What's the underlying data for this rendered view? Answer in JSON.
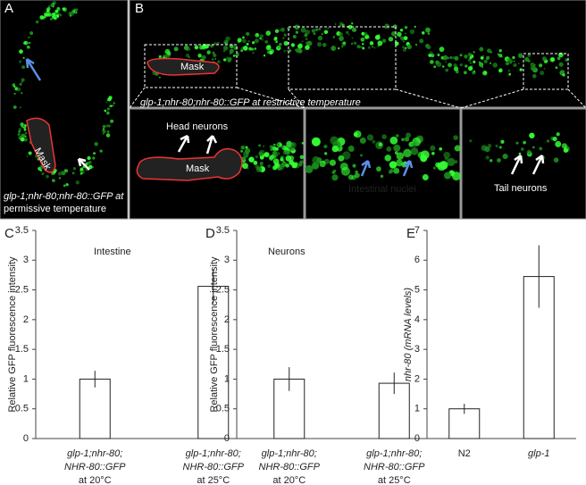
{
  "images": {
    "a": {
      "label": "A",
      "mask": "Mask",
      "caption": [
        "glp-1;nhr-80;nhr-80::GFP at",
        "permissive temperature"
      ]
    },
    "b": {
      "label": "B",
      "mask": "Mask",
      "caption": "glp-1;nhr-80;nhr-80::GFP at restrictive temperature",
      "head_mask": "Mask",
      "head": "Head neurons",
      "intestine": "Intestinal nuclei",
      "tail": "Tail neurons"
    }
  },
  "chart_data": [
    {
      "type": "bar",
      "label": "C",
      "title": "Intestine",
      "y_label": "Relative GFP fluorescence intensity",
      "categories": [
        [
          "glp-1;nhr-80;",
          "NHR-80::GFP",
          "at 20°C"
        ],
        [
          "glp-1;nhr-80;",
          "NHR-80::GFP",
          "at 25°C"
        ]
      ],
      "values": [
        1.0,
        2.56
      ],
      "errors": [
        0.14,
        0.29
      ],
      "color": "#ffffff",
      "ylim": [
        0,
        3.5
      ],
      "yticks": [
        0,
        0.5,
        1,
        1.5,
        2,
        2.5,
        3,
        3.5
      ]
    },
    {
      "type": "bar",
      "label": "D",
      "title": "Neurons",
      "y_label": "Relative GFP fluorescence intensity",
      "categories": [
        [
          "glp-1;nhr-80;",
          "NHR-80::GFP",
          "at 20°C"
        ],
        [
          "glp-1;nhr-80;",
          "NHR-80::GFP",
          "at 25°C"
        ]
      ],
      "values": [
        1.0,
        0.93
      ],
      "errors": [
        0.2,
        0.18
      ],
      "color": "#ffffff",
      "ylim": [
        0,
        3.5
      ],
      "yticks": [
        0,
        0.5,
        1,
        1.5,
        2,
        2.5,
        3,
        3.5
      ]
    },
    {
      "type": "bar",
      "label": "E",
      "y_label": "nhr-80 (mRNA levels)",
      "categories": [
        [
          "N2"
        ],
        [
          "glp-1"
        ]
      ],
      "values": [
        1.0,
        5.45
      ],
      "errors": [
        0.17,
        1.05
      ],
      "color": "#ffffff",
      "ylim": [
        0,
        7
      ],
      "yticks": [
        0,
        1,
        2,
        3,
        4,
        5,
        6,
        7
      ]
    }
  ]
}
